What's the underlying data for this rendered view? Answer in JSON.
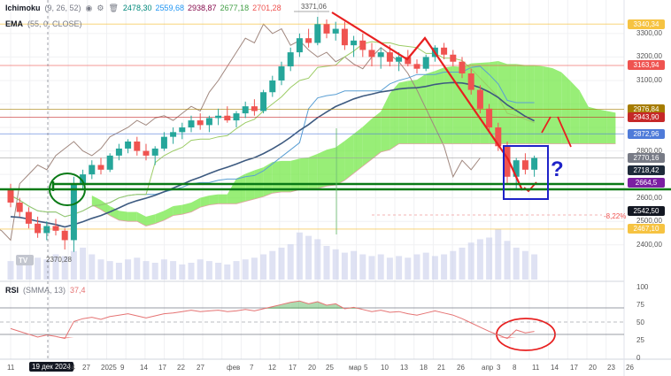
{
  "legend": {
    "ichimoku": {
      "name": "Ichimoku",
      "params": "(9, 26, 52)",
      "values": [
        {
          "v": "2478,30",
          "c": "#00897b"
        },
        {
          "v": "2559,68",
          "c": "#2196f3"
        },
        {
          "v": "2938,87",
          "c": "#880e4f"
        },
        {
          "v": "2677,18",
          "c": "#43a047"
        },
        {
          "v": "2701,28",
          "c": "#ef5350"
        }
      ]
    },
    "ema": {
      "name": "EMA",
      "params": "(55, 0, CLOSE)"
    },
    "rsi": {
      "name": "RSI",
      "params": "(SMMA, 13)",
      "value": "37,4"
    }
  },
  "icons": [
    "eye-icon",
    "gear-icon",
    "delete-icon"
  ],
  "colors": {
    "up": "#26a69a",
    "down": "#ef5350",
    "cloud_up": "#76e84a",
    "cloud_down": "#f08080",
    "ema": "#3d5a80",
    "kijun": "#5a9fd4",
    "tenkan": "#d4a843",
    "annotation_red": "#e82020",
    "annotation_blue": "#1e22c8",
    "annotation_green": "#0a7a16"
  },
  "price_axis": {
    "ticks": [
      "3300,00",
      "3200,00",
      "3100,00",
      "2800,00",
      "2600,00",
      "2500,00",
      "2400,00"
    ],
    "tags": [
      {
        "v": "3340,34",
        "c": "#f6c342"
      },
      {
        "v": "3163,94",
        "c": "#ef5350"
      },
      {
        "v": "2976,84",
        "c": "#a67c00"
      },
      {
        "v": "2943,90",
        "c": "#c62828"
      },
      {
        "v": "2872,96",
        "c": "#4f7bd9"
      },
      {
        "v": "2770,16",
        "c": "#787b86"
      },
      {
        "v": "2718,42",
        "c": "#1e2a3a"
      },
      {
        "v": "2664,5",
        "c": "#7b1fa2"
      },
      {
        "v": "2542,50",
        "c": "#131722"
      },
      {
        "v": "2467,10",
        "c": "#f6c342"
      }
    ]
  },
  "annotations": {
    "high": "3371,06",
    "low": "2370,28",
    "pct": "-8,22%",
    "question": "?"
  },
  "rsi_axis": [
    "100",
    "75",
    "50",
    "25",
    "0"
  ],
  "date_axis": {
    "labels": [
      "11",
      "19 дек 2024",
      "24",
      "27",
      "2025",
      "9",
      "14",
      "17",
      "22",
      "27",
      "фев",
      "7",
      "12",
      "17",
      "20",
      "25",
      "мар",
      "5",
      "10",
      "13",
      "18",
      "21",
      "26",
      "апр",
      "3",
      "8",
      "11",
      "14",
      "17",
      "20",
      "23",
      "26"
    ],
    "selected": "19 дек 2024"
  },
  "chart_data": {
    "type": "candlestick",
    "price_range": [
      2350,
      3390
    ],
    "rsi_range": [
      0,
      100
    ],
    "rsi_levels": [
      70,
      50,
      30
    ],
    "bars": [
      {
        "o": 2640,
        "h": 2660,
        "l": 2560,
        "c": 2580
      },
      {
        "o": 2580,
        "h": 2600,
        "l": 2520,
        "c": 2540
      },
      {
        "o": 2540,
        "h": 2560,
        "l": 2470,
        "c": 2490
      },
      {
        "o": 2490,
        "h": 2520,
        "l": 2430,
        "c": 2450
      },
      {
        "o": 2450,
        "h": 2500,
        "l": 2420,
        "c": 2480
      },
      {
        "o": 2480,
        "h": 2510,
        "l": 2440,
        "c": 2460
      },
      {
        "o": 2460,
        "h": 2470,
        "l": 2380,
        "c": 2420
      },
      {
        "o": 2420,
        "h": 2690,
        "l": 2370,
        "c": 2660
      },
      {
        "o": 2660,
        "h": 2720,
        "l": 2640,
        "c": 2700
      },
      {
        "o": 2700,
        "h": 2760,
        "l": 2680,
        "c": 2740
      },
      {
        "o": 2740,
        "h": 2770,
        "l": 2700,
        "c": 2720
      },
      {
        "o": 2720,
        "h": 2790,
        "l": 2710,
        "c": 2780
      },
      {
        "o": 2780,
        "h": 2830,
        "l": 2760,
        "c": 2810
      },
      {
        "o": 2810,
        "h": 2850,
        "l": 2790,
        "c": 2840
      },
      {
        "o": 2840,
        "h": 2860,
        "l": 2780,
        "c": 2800
      },
      {
        "o": 2800,
        "h": 2830,
        "l": 2760,
        "c": 2780
      },
      {
        "o": 2780,
        "h": 2820,
        "l": 2740,
        "c": 2810
      },
      {
        "o": 2810,
        "h": 2880,
        "l": 2800,
        "c": 2860
      },
      {
        "o": 2860,
        "h": 2900,
        "l": 2830,
        "c": 2880
      },
      {
        "o": 2880,
        "h": 2920,
        "l": 2850,
        "c": 2900
      },
      {
        "o": 2900,
        "h": 2950,
        "l": 2880,
        "c": 2930
      },
      {
        "o": 2930,
        "h": 2960,
        "l": 2890,
        "c": 2910
      },
      {
        "o": 2910,
        "h": 2950,
        "l": 2880,
        "c": 2940
      },
      {
        "o": 2940,
        "h": 2980,
        "l": 2910,
        "c": 2950
      },
      {
        "o": 2950,
        "h": 2990,
        "l": 2920,
        "c": 2930
      },
      {
        "o": 2930,
        "h": 2970,
        "l": 2900,
        "c": 2960
      },
      {
        "o": 2960,
        "h": 3010,
        "l": 2940,
        "c": 2990
      },
      {
        "o": 2990,
        "h": 3020,
        "l": 2950,
        "c": 2970
      },
      {
        "o": 2970,
        "h": 3060,
        "l": 2960,
        "c": 3050
      },
      {
        "o": 3050,
        "h": 3120,
        "l": 3030,
        "c": 3100
      },
      {
        "o": 3100,
        "h": 3180,
        "l": 3080,
        "c": 3160
      },
      {
        "o": 3160,
        "h": 3240,
        "l": 3140,
        "c": 3220
      },
      {
        "o": 3220,
        "h": 3300,
        "l": 3200,
        "c": 3280
      },
      {
        "o": 3280,
        "h": 3320,
        "l": 3240,
        "c": 3260
      },
      {
        "o": 3260,
        "h": 3371,
        "l": 3250,
        "c": 3340
      },
      {
        "o": 3340,
        "h": 3360,
        "l": 3280,
        "c": 3300
      },
      {
        "o": 3300,
        "h": 3350,
        "l": 3270,
        "c": 3320
      },
      {
        "o": 3320,
        "h": 3350,
        "l": 3230,
        "c": 3250
      },
      {
        "o": 3250,
        "h": 3290,
        "l": 3200,
        "c": 3270
      },
      {
        "o": 3270,
        "h": 3300,
        "l": 3200,
        "c": 3230
      },
      {
        "o": 3230,
        "h": 3260,
        "l": 3160,
        "c": 3200
      },
      {
        "o": 3200,
        "h": 3240,
        "l": 3150,
        "c": 3220
      },
      {
        "o": 3220,
        "h": 3250,
        "l": 3160,
        "c": 3180
      },
      {
        "o": 3180,
        "h": 3220,
        "l": 3140,
        "c": 3200
      },
      {
        "o": 3200,
        "h": 3230,
        "l": 3160,
        "c": 3170
      },
      {
        "o": 3170,
        "h": 3190,
        "l": 3130,
        "c": 3150
      },
      {
        "o": 3150,
        "h": 3210,
        "l": 3140,
        "c": 3200
      },
      {
        "o": 3200,
        "h": 3250,
        "l": 3180,
        "c": 3240
      },
      {
        "o": 3240,
        "h": 3260,
        "l": 3190,
        "c": 3210
      },
      {
        "o": 3210,
        "h": 3230,
        "l": 3160,
        "c": 3180
      },
      {
        "o": 3180,
        "h": 3200,
        "l": 3110,
        "c": 3130
      },
      {
        "o": 3130,
        "h": 3150,
        "l": 3040,
        "c": 3060
      },
      {
        "o": 3060,
        "h": 3080,
        "l": 2960,
        "c": 2980
      },
      {
        "o": 2980,
        "h": 3000,
        "l": 2880,
        "c": 2900
      },
      {
        "o": 2900,
        "h": 2920,
        "l": 2800,
        "c": 2820
      },
      {
        "o": 2820,
        "h": 2840,
        "l": 2660,
        "c": 2690
      },
      {
        "o": 2690,
        "h": 2770,
        "l": 2640,
        "c": 2760
      },
      {
        "o": 2760,
        "h": 2790,
        "l": 2700,
        "c": 2720
      },
      {
        "o": 2720,
        "h": 2780,
        "l": 2690,
        "c": 2770
      }
    ],
    "rsi": [
      42,
      38,
      34,
      30,
      33,
      31,
      28,
      52,
      56,
      58,
      55,
      59,
      61,
      63,
      60,
      57,
      60,
      63,
      64,
      66,
      68,
      66,
      67,
      68,
      66,
      67,
      69,
      67,
      70,
      73,
      76,
      79,
      81,
      77,
      80,
      75,
      77,
      70,
      72,
      69,
      66,
      68,
      65,
      66,
      63,
      61,
      64,
      67,
      64,
      61,
      56,
      50,
      44,
      38,
      33,
      28,
      40,
      36,
      38
    ],
    "volume": [
      22,
      18,
      20,
      26,
      24,
      30,
      28,
      34,
      38,
      30,
      24,
      22,
      20,
      24,
      26,
      22,
      20,
      24,
      22,
      18,
      20,
      24,
      22,
      20,
      18,
      22,
      24,
      26,
      30,
      34,
      38,
      42,
      56,
      52,
      48,
      40,
      36,
      32,
      34,
      30,
      28,
      30,
      26,
      28,
      26,
      30,
      32,
      28,
      30,
      34,
      38,
      44,
      48,
      50,
      60,
      46,
      38,
      34,
      30
    ]
  }
}
